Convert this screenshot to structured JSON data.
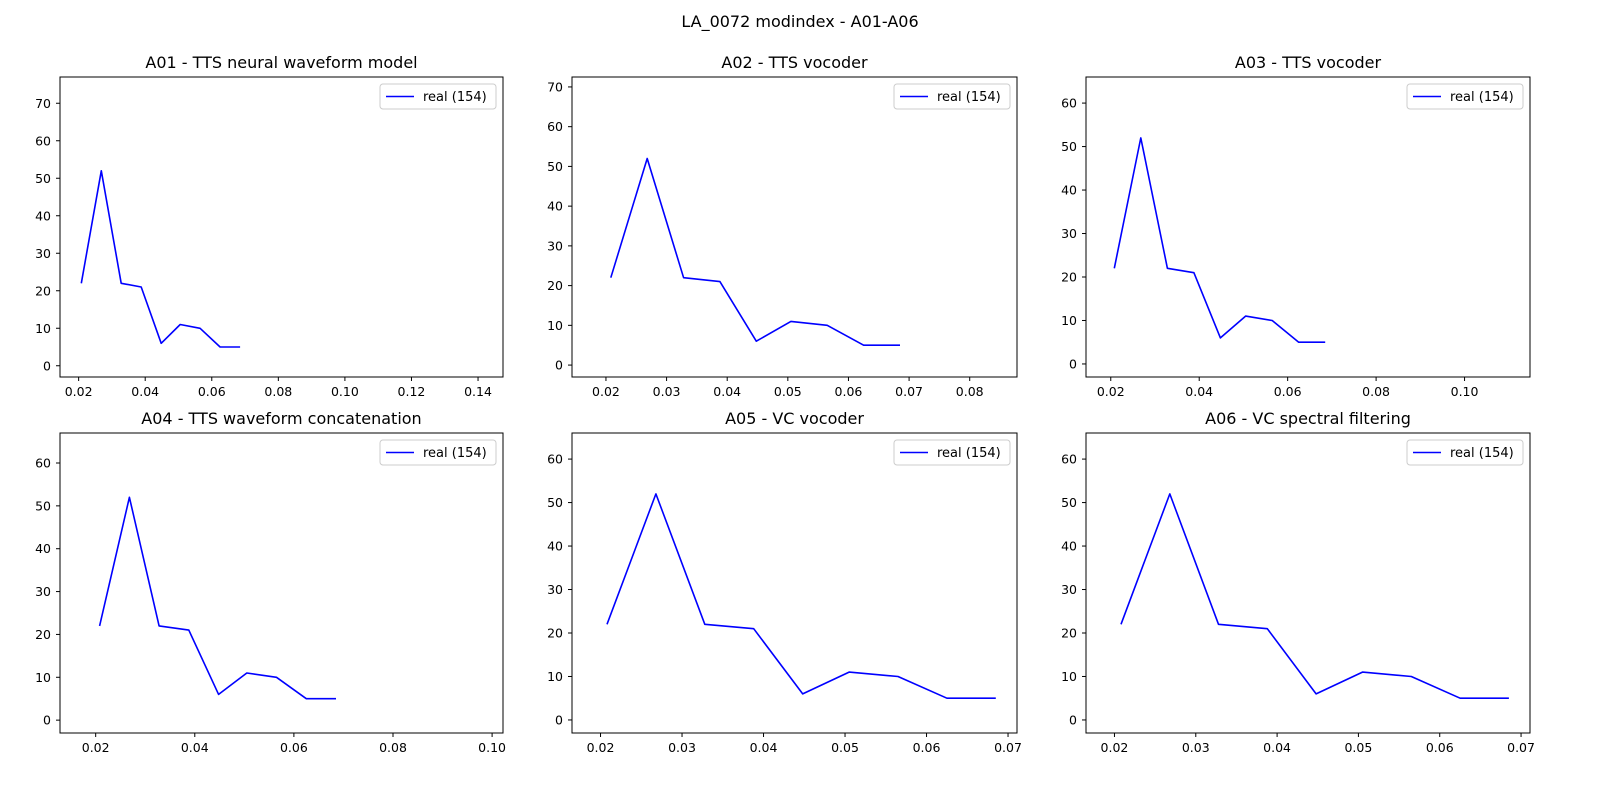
{
  "figure_title": "LA_0072 modindex - A01-A06",
  "colors": {
    "line": "#0000ff",
    "axes": "#000000",
    "legend_border": "#cccccc"
  },
  "chart_data": [
    {
      "id": "A01",
      "type": "line",
      "title": "A01 - TTS neural waveform model",
      "xlim": [
        0.0144,
        0.1475
      ],
      "ylim": [
        -3.0,
        77.0
      ],
      "xticks": [
        0.02,
        0.04,
        0.06,
        0.08,
        0.1,
        0.12,
        0.14
      ],
      "xtick_labels": [
        "0.02",
        "0.04",
        "0.06",
        "0.08",
        "0.10",
        "0.12",
        "0.14"
      ],
      "yticks": [
        0,
        10,
        20,
        30,
        40,
        50,
        60,
        70
      ],
      "ytick_labels": [
        "0",
        "10",
        "20",
        "30",
        "40",
        "50",
        "60",
        "70"
      ],
      "legend_position": "top-right",
      "series": [
        {
          "name": "real (154)",
          "x": [
            0.0208,
            0.0268,
            0.0328,
            0.0388,
            0.0448,
            0.0505,
            0.0565,
            0.0625,
            0.0685
          ],
          "y": [
            22,
            52,
            22,
            21,
            6,
            11,
            10,
            5,
            5
          ]
        }
      ]
    },
    {
      "id": "A02",
      "type": "line",
      "title": "A02 - TTS vocoder",
      "xlim": [
        0.0144,
        0.0878
      ],
      "ylim": [
        -3.0,
        72.5
      ],
      "xticks": [
        0.02,
        0.03,
        0.04,
        0.05,
        0.06,
        0.07,
        0.08
      ],
      "xtick_labels": [
        "0.02",
        "0.03",
        "0.04",
        "0.05",
        "0.06",
        "0.07",
        "0.08"
      ],
      "yticks": [
        0,
        10,
        20,
        30,
        40,
        50,
        60,
        70
      ],
      "ytick_labels": [
        "0",
        "10",
        "20",
        "30",
        "40",
        "50",
        "60",
        "70"
      ],
      "legend_position": "top-right",
      "series": [
        {
          "name": "real (154)",
          "x": [
            0.0208,
            0.0268,
            0.0328,
            0.0388,
            0.0448,
            0.0505,
            0.0565,
            0.0625,
            0.0685
          ],
          "y": [
            22,
            52,
            22,
            21,
            6,
            11,
            10,
            5,
            5
          ]
        }
      ]
    },
    {
      "id": "A03",
      "type": "line",
      "title": "A03 - TTS vocoder",
      "xlim": [
        0.0144,
        0.1148
      ],
      "ylim": [
        -3.0,
        66.0
      ],
      "xticks": [
        0.02,
        0.04,
        0.06,
        0.08,
        0.1
      ],
      "xtick_labels": [
        "0.02",
        "0.04",
        "0.06",
        "0.08",
        "0.10"
      ],
      "yticks": [
        0,
        10,
        20,
        30,
        40,
        50,
        60
      ],
      "ytick_labels": [
        "0",
        "10",
        "20",
        "30",
        "40",
        "50",
        "60"
      ],
      "legend_position": "top-right",
      "series": [
        {
          "name": "real (154)",
          "x": [
            0.0208,
            0.0268,
            0.0328,
            0.0388,
            0.0448,
            0.0505,
            0.0565,
            0.0625,
            0.0685
          ],
          "y": [
            22,
            52,
            22,
            21,
            6,
            11,
            10,
            5,
            5
          ]
        }
      ]
    },
    {
      "id": "A04",
      "type": "line",
      "title": "A04 - TTS waveform concatenation",
      "xlim": [
        0.0128,
        0.1022
      ],
      "ylim": [
        -3.0,
        67.0
      ],
      "xticks": [
        0.02,
        0.04,
        0.06,
        0.08,
        0.1
      ],
      "xtick_labels": [
        "0.02",
        "0.04",
        "0.06",
        "0.08",
        "0.10"
      ],
      "yticks": [
        0,
        10,
        20,
        30,
        40,
        50,
        60
      ],
      "ytick_labels": [
        "0",
        "10",
        "20",
        "30",
        "40",
        "50",
        "60"
      ],
      "legend_position": "top-right",
      "series": [
        {
          "name": "real (154)",
          "x": [
            0.0208,
            0.0268,
            0.0328,
            0.0388,
            0.0448,
            0.0505,
            0.0565,
            0.0625,
            0.0685
          ],
          "y": [
            22,
            52,
            22,
            21,
            6,
            11,
            10,
            5,
            5
          ]
        }
      ]
    },
    {
      "id": "A05",
      "type": "line",
      "title": "A05 - VC vocoder",
      "xlim": [
        0.0165,
        0.0711
      ],
      "ylim": [
        -3.0,
        66.0
      ],
      "xticks": [
        0.02,
        0.03,
        0.04,
        0.05,
        0.06,
        0.07
      ],
      "xtick_labels": [
        "0.02",
        "0.03",
        "0.04",
        "0.05",
        "0.06",
        "0.07"
      ],
      "yticks": [
        0,
        10,
        20,
        30,
        40,
        50,
        60
      ],
      "ytick_labels": [
        "0",
        "10",
        "20",
        "30",
        "40",
        "50",
        "60"
      ],
      "legend_position": "top-right",
      "series": [
        {
          "name": "real (154)",
          "x": [
            0.0208,
            0.0268,
            0.0328,
            0.0388,
            0.0448,
            0.0505,
            0.0565,
            0.0625,
            0.0685
          ],
          "y": [
            22,
            52,
            22,
            21,
            6,
            11,
            10,
            5,
            5
          ]
        }
      ]
    },
    {
      "id": "A06",
      "type": "line",
      "title": "A06 - VC spectral filtering",
      "xlim": [
        0.0165,
        0.0711
      ],
      "ylim": [
        -3.0,
        66.0
      ],
      "xticks": [
        0.02,
        0.03,
        0.04,
        0.05,
        0.06,
        0.07
      ],
      "xtick_labels": [
        "0.02",
        "0.03",
        "0.04",
        "0.05",
        "0.06",
        "0.07"
      ],
      "yticks": [
        0,
        10,
        20,
        30,
        40,
        50,
        60
      ],
      "ytick_labels": [
        "0",
        "10",
        "20",
        "30",
        "40",
        "50",
        "60"
      ],
      "legend_position": "top-right",
      "series": [
        {
          "name": "real (154)",
          "x": [
            0.0208,
            0.0268,
            0.0328,
            0.0388,
            0.0448,
            0.0505,
            0.0565,
            0.0625,
            0.0685
          ],
          "y": [
            22,
            52,
            22,
            21,
            6,
            11,
            10,
            5,
            5
          ]
        }
      ]
    }
  ]
}
